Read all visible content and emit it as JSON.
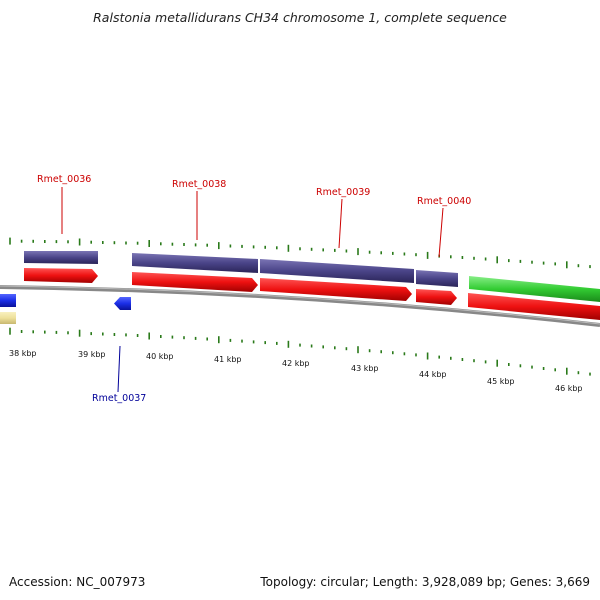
{
  "title": "Ralstonia metallidurans CH34 chromosome 1, complete sequence",
  "footer": {
    "accession": "Accession: NC_007973",
    "summary": "Topology: circular; Length: 3,928,089 bp; Genes: 3,669"
  },
  "kbp_labels": [
    "38 kbp",
    "39 kbp",
    "40 kbp",
    "41 kbp",
    "42 kbp",
    "43 kbp",
    "44 kbp",
    "45 kbp",
    "46 kbp"
  ],
  "gene_labels": {
    "top": [
      "Rmet_0036",
      "Rmet_0038",
      "Rmet_0039",
      "Rmet_0040"
    ],
    "bottom": [
      "Rmet_0037"
    ]
  },
  "colors": {
    "cds": "#ee1111",
    "gene": "#4a4488",
    "rna": "#33cc33",
    "reverse": "#1a2ee6",
    "other": "#eee09a",
    "tick": "#2a7a1a",
    "backbone": "#888888",
    "label_top": "#cc0000",
    "label_bottom": "#000099"
  }
}
